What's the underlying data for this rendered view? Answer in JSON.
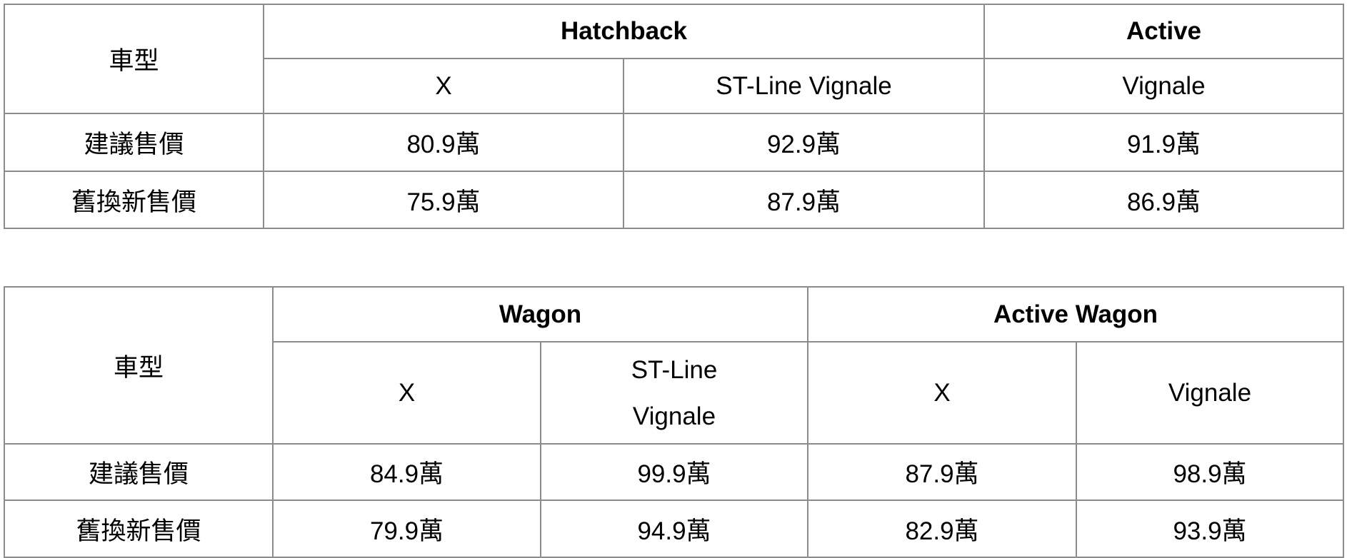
{
  "tables": [
    {
      "corner": "車型",
      "groups": [
        {
          "name": "Hatchback",
          "variants": [
            "X",
            "ST-Line Vignale"
          ]
        },
        {
          "name": "Active",
          "variants": [
            "Vignale"
          ]
        }
      ],
      "rows": [
        {
          "label": "建議售價",
          "values": [
            "80.9萬",
            "92.9萬",
            "91.9萬"
          ]
        },
        {
          "label": "舊換新售價",
          "values": [
            "75.9萬",
            "87.9萬",
            "86.9萬"
          ]
        }
      ]
    },
    {
      "corner": "車型",
      "groups": [
        {
          "name": "Wagon",
          "variants": [
            "X",
            "ST-Line Vignale"
          ]
        },
        {
          "name": "Active Wagon",
          "variants": [
            "X",
            "Vignale"
          ]
        }
      ],
      "rows": [
        {
          "label": "建議售價",
          "values": [
            "84.9萬",
            "99.9萬",
            "87.9萬",
            "98.9萬"
          ]
        },
        {
          "label": "舊換新售價",
          "values": [
            "79.9萬",
            "94.9萬",
            "82.9萬",
            "93.9萬"
          ]
        }
      ]
    }
  ]
}
